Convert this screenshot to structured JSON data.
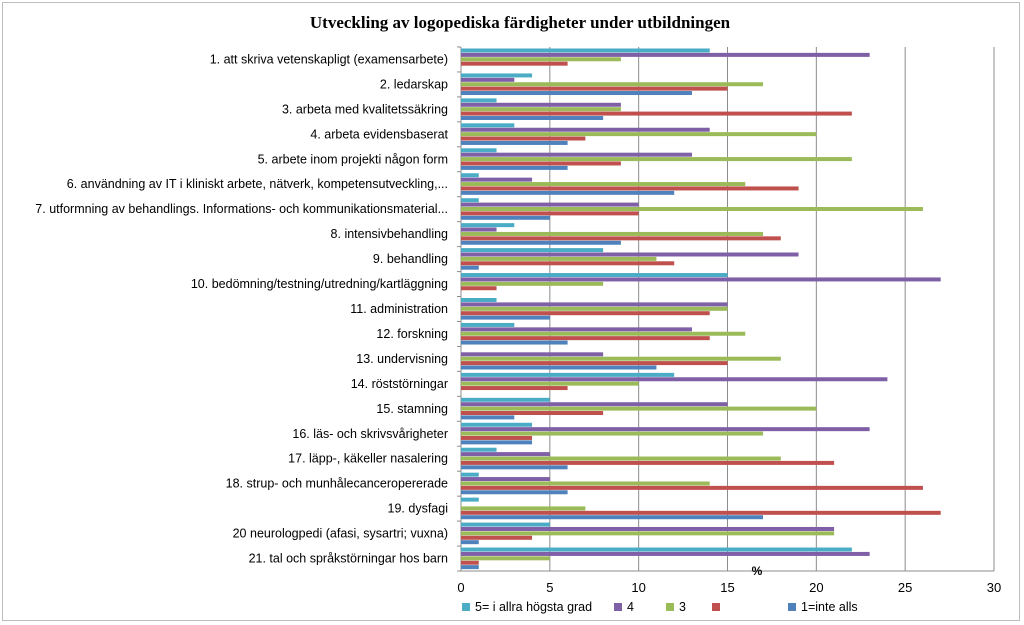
{
  "chart_data": {
    "type": "bar",
    "orientation": "horizontal",
    "title": "Utveckling av logopediska färdigheter under utbildningen",
    "xlabel": "%",
    "ylabel": "",
    "xlim": [
      0,
      30
    ],
    "xticks": [
      0,
      5,
      10,
      15,
      20,
      25,
      30
    ],
    "grid": true,
    "legend_position": "bottom",
    "categories": [
      "1. att skriva vetenskapligt (examensarbete)",
      "2. ledarskap",
      "3. arbeta med kvalitetssäkring",
      "4. arbeta evidensbaserat",
      "5. arbete inom projekti någon form",
      "6. användning av IT i kliniskt arbete, nätverk, kompetensutveckling,...",
      "7. utformning av behandlings. Informations- och kommunikationsmaterial...",
      "8. intensivbehandling",
      "9. behandling",
      "10. bedömning/testning/utredning/kartläggning",
      "11. administration",
      "12. forskning",
      "13. undervisning",
      "14. röststörningar",
      "15. stamning",
      "16. läs- och skrivsvårigheter",
      "17. läpp-, käkeller nasalering",
      "18. strup- och munhålecanceropererade",
      "19. dysfagi",
      "20 neurologpedi (afasi, sysartri; vuxna)",
      "21. tal och språkstörningar hos barn"
    ],
    "series": [
      {
        "name": "5= i allra högsta grad",
        "color": "#4bacc6",
        "values": [
          14,
          4,
          2,
          3,
          2,
          1,
          1,
          3,
          8,
          15,
          2,
          3,
          0,
          12,
          5,
          4,
          2,
          1,
          1,
          5,
          22
        ]
      },
      {
        "name": "4",
        "color": "#7f5fa6",
        "values": [
          23,
          3,
          9,
          14,
          13,
          4,
          10,
          2,
          19,
          27,
          15,
          13,
          8,
          24,
          15,
          23,
          5,
          5,
          0,
          21,
          23
        ]
      },
      {
        "name": "3",
        "color": "#9bbb59",
        "values": [
          9,
          17,
          9,
          20,
          22,
          16,
          26,
          17,
          11,
          8,
          15,
          16,
          18,
          10,
          20,
          17,
          18,
          14,
          7,
          21,
          5
        ]
      },
      {
        "name": "",
        "color": "#c0504d",
        "values": [
          6,
          15,
          22,
          7,
          9,
          19,
          10,
          18,
          12,
          2,
          14,
          14,
          15,
          6,
          8,
          4,
          21,
          26,
          27,
          4,
          1
        ]
      },
      {
        "name": "1=inte alls",
        "color": "#4f81bd",
        "values": [
          0,
          13,
          8,
          6,
          6,
          12,
          5,
          9,
          1,
          0,
          5,
          6,
          11,
          0,
          3,
          4,
          6,
          6,
          17,
          1,
          1
        ]
      }
    ],
    "legend": [
      {
        "label": "5= i allra högsta grad",
        "color": "#4bacc6"
      },
      {
        "label": "4",
        "color": "#7f5fa6"
      },
      {
        "label": "3",
        "color": "#9bbb59"
      },
      {
        "label": "",
        "color": "#c0504d"
      },
      {
        "label": "1=inte alls",
        "color": "#4f81bd"
      }
    ]
  }
}
